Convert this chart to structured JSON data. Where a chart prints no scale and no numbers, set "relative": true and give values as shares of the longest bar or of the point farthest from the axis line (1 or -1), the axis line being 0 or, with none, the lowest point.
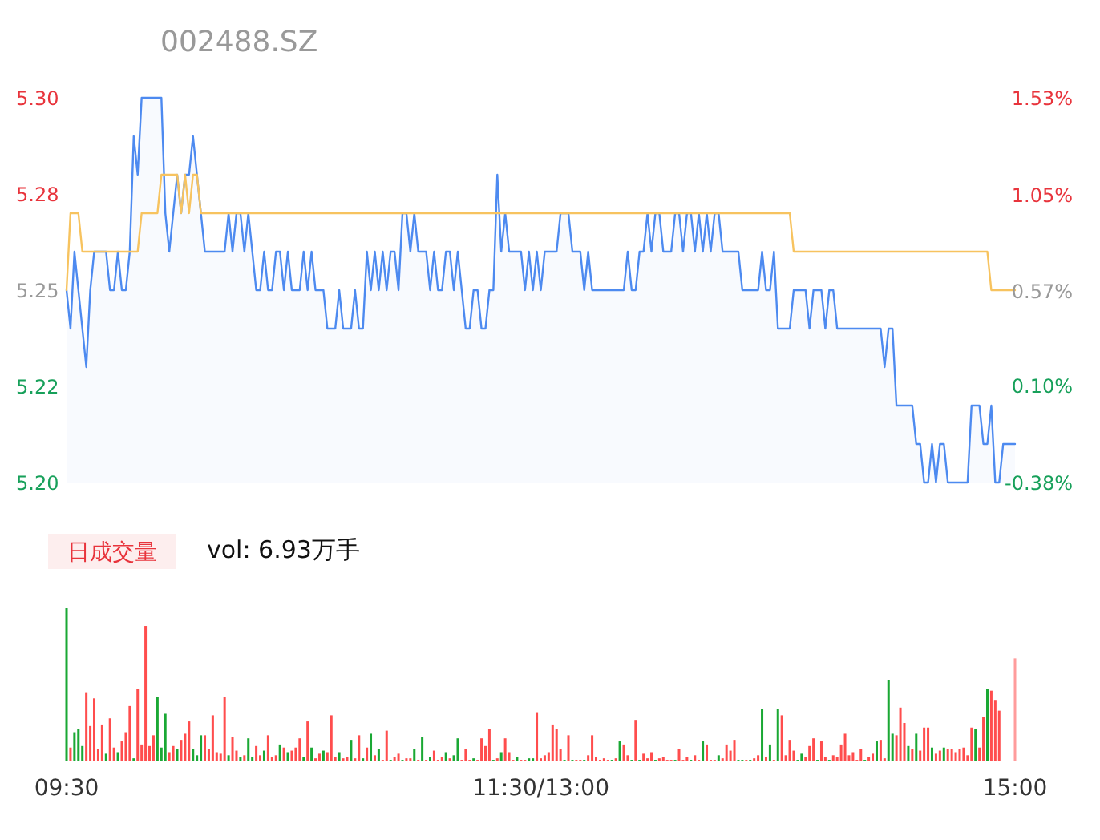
{
  "chart_data": [
    {
      "type": "area",
      "title": "002488.SZ",
      "tick_labels": "y",
      "categories": [
        null,
        null,
        null,
        null,
        null,
        null,
        null,
        null,
        null,
        null,
        null,
        null,
        null,
        null,
        null,
        null,
        null,
        null,
        null,
        null,
        null,
        null,
        null,
        null,
        null,
        null,
        null,
        null,
        null,
        null,
        null,
        null,
        null,
        null,
        null,
        null,
        null,
        null,
        null,
        null,
        null,
        null,
        null,
        null,
        null,
        null,
        null,
        null,
        null,
        null,
        null,
        null,
        null,
        null,
        null,
        null,
        null,
        null,
        null,
        null,
        null,
        null,
        null,
        null,
        null,
        null,
        null,
        null,
        null,
        null,
        null,
        null,
        null,
        null,
        null,
        null,
        null,
        null,
        null,
        null,
        null,
        null,
        null,
        null,
        null,
        null,
        null,
        null,
        null,
        null,
        null,
        null,
        null,
        null,
        null,
        null,
        null,
        null,
        null,
        null,
        null,
        null,
        null,
        null,
        null,
        null,
        null,
        null,
        null,
        null,
        null,
        null,
        null,
        null,
        null,
        null,
        null,
        null,
        null,
        null,
        null,
        null,
        null,
        null,
        null,
        null,
        null,
        null,
        null,
        null,
        null,
        null,
        null,
        null,
        null,
        null,
        null,
        null,
        null,
        null,
        null,
        null,
        null,
        null,
        null,
        null,
        null,
        null,
        null,
        null,
        null,
        null,
        null,
        null,
        null,
        null,
        null,
        null,
        null,
        null,
        null,
        null,
        null,
        null,
        null,
        null,
        null,
        null,
        null,
        null,
        null,
        null,
        null,
        null,
        null,
        null,
        null,
        null,
        null,
        null,
        null,
        null,
        null,
        null,
        null,
        null,
        null,
        null,
        null,
        null,
        null,
        null,
        null,
        null,
        null,
        null,
        null,
        null,
        null,
        null,
        null,
        null,
        null,
        null,
        null,
        null,
        null,
        null,
        null,
        null,
        null,
        null,
        null,
        null,
        null,
        null,
        null,
        null,
        null,
        null,
        null,
        null,
        null,
        null,
        null,
        null,
        null,
        null,
        null,
        null,
        null,
        null,
        null,
        null,
        null,
        null,
        null,
        null,
        null,
        null,
        null
      ],
      "series": [
        {
          "type": "area",
          "color": "#4d8af0",
          "values": [
            5.25,
            5.24,
            5.26,
            5.25,
            5.24,
            5.23,
            5.25,
            5.26,
            5.26,
            5.26,
            5.26,
            5.25,
            5.25,
            5.26,
            5.25,
            5.25,
            5.26,
            5.29,
            5.28,
            5.3,
            5.3,
            5.3,
            5.3,
            5.3,
            5.3,
            5.27,
            5.26,
            5.27,
            5.28,
            5.27,
            5.28,
            5.28,
            5.29,
            5.28,
            5.27,
            5.26,
            5.26,
            5.26,
            5.26,
            5.26,
            5.26,
            5.27,
            5.26,
            5.27,
            5.27,
            5.26,
            5.27,
            5.26,
            5.25,
            5.25,
            5.26,
            5.25,
            5.25,
            5.26,
            5.26,
            5.25,
            5.26,
            5.25,
            5.25,
            5.25,
            5.26,
            5.25,
            5.26,
            5.25,
            5.25,
            5.25,
            5.24,
            5.24,
            5.24,
            5.25,
            5.24,
            5.24,
            5.24,
            5.25,
            5.24,
            5.24,
            5.26,
            5.25,
            5.26,
            5.25,
            5.26,
            5.25,
            5.26,
            5.26,
            5.25,
            5.27,
            5.27,
            5.26,
            5.27,
            5.26,
            5.26,
            5.26,
            5.25,
            5.26,
            5.25,
            5.25,
            5.26,
            5.26,
            5.25,
            5.26,
            5.25,
            5.24,
            5.24,
            5.25,
            5.25,
            5.24,
            5.24,
            5.25,
            5.25,
            5.28,
            5.26,
            5.27,
            5.26,
            5.26,
            5.26,
            5.26,
            5.25,
            5.26,
            5.25,
            5.26,
            5.25,
            5.26,
            5.26,
            5.26,
            5.26,
            5.27,
            5.27,
            5.27,
            5.26,
            5.26,
            5.26,
            5.25,
            5.26,
            5.25,
            5.25,
            5.25,
            5.25,
            5.25,
            5.25,
            5.25,
            5.25,
            5.25,
            5.26,
            5.25,
            5.25,
            5.26,
            5.26,
            5.27,
            5.26,
            5.27,
            5.27,
            5.26,
            5.26,
            5.26,
            5.27,
            5.27,
            5.26,
            5.27,
            5.27,
            5.26,
            5.27,
            5.26,
            5.27,
            5.26,
            5.27,
            5.27,
            5.26,
            5.26,
            5.26,
            5.26,
            5.26,
            5.25,
            5.25,
            5.25,
            5.25,
            5.25,
            5.26,
            5.25,
            5.25,
            5.26,
            5.24,
            5.24,
            5.24,
            5.24,
            5.25,
            5.25,
            5.25,
            5.25,
            5.24,
            5.25,
            5.25,
            5.25,
            5.24,
            5.25,
            5.25,
            5.24,
            5.24,
            5.24,
            5.24,
            5.24,
            5.24,
            5.24,
            5.24,
            5.24,
            5.24,
            5.24,
            5.24,
            5.23,
            5.24,
            5.24,
            5.22,
            5.22,
            5.22,
            5.22,
            5.22,
            5.21,
            5.21,
            5.2,
            5.2,
            5.21,
            5.2,
            5.21,
            5.21,
            5.2,
            5.2,
            5.2,
            5.2,
            5.2,
            5.2,
            5.22,
            5.22,
            5.22,
            5.21,
            5.21,
            5.22,
            5.2,
            5.2,
            5.21,
            5.21,
            5.21,
            5.21
          ]
        },
        {
          "type": "line",
          "color": "#f7c35f",
          "values": [
            5.25,
            5.27,
            5.27,
            5.27,
            5.26,
            5.26,
            5.26,
            5.26,
            5.26,
            5.26,
            5.26,
            5.26,
            5.26,
            5.26,
            5.26,
            5.26,
            5.26,
            5.26,
            5.26,
            5.27,
            5.27,
            5.27,
            5.27,
            5.27,
            5.28,
            5.28,
            5.28,
            5.28,
            5.28,
            5.27,
            5.28,
            5.27,
            5.28,
            5.28,
            5.27,
            5.27,
            5.27,
            5.27,
            5.27,
            5.27,
            5.27,
            5.27,
            5.27,
            5.27,
            5.27,
            5.27,
            5.27,
            5.27,
            5.27,
            5.27,
            5.27,
            5.27,
            5.27,
            5.27,
            5.27,
            5.27,
            5.27,
            5.27,
            5.27,
            5.27,
            5.27,
            5.27,
            5.27,
            5.27,
            5.27,
            5.27,
            5.27,
            5.27,
            5.27,
            5.27,
            5.27,
            5.27,
            5.27,
            5.27,
            5.27,
            5.27,
            5.27,
            5.27,
            5.27,
            5.27,
            5.27,
            5.27,
            5.27,
            5.27,
            5.27,
            5.27,
            5.27,
            5.27,
            5.27,
            5.27,
            5.27,
            5.27,
            5.27,
            5.27,
            5.27,
            5.27,
            5.27,
            5.27,
            5.27,
            5.27,
            5.27,
            5.27,
            5.27,
            5.27,
            5.27,
            5.27,
            5.27,
            5.27,
            5.27,
            5.27,
            5.27,
            5.27,
            5.27,
            5.27,
            5.27,
            5.27,
            5.27,
            5.27,
            5.27,
            5.27,
            5.27,
            5.27,
            5.27,
            5.27,
            5.27,
            5.27,
            5.27,
            5.27,
            5.27,
            5.27,
            5.27,
            5.27,
            5.27,
            5.27,
            5.27,
            5.27,
            5.27,
            5.27,
            5.27,
            5.27,
            5.27,
            5.27,
            5.27,
            5.27,
            5.27,
            5.27,
            5.27,
            5.27,
            5.27,
            5.27,
            5.27,
            5.27,
            5.27,
            5.27,
            5.27,
            5.27,
            5.27,
            5.27,
            5.27,
            5.27,
            5.27,
            5.27,
            5.27,
            5.27,
            5.27,
            5.27,
            5.27,
            5.27,
            5.27,
            5.27,
            5.27,
            5.27,
            5.27,
            5.27,
            5.27,
            5.27,
            5.27,
            5.27,
            5.27,
            5.27,
            5.27,
            5.27,
            5.27,
            5.27,
            5.26,
            5.26,
            5.26,
            5.26,
            5.26,
            5.26,
            5.26,
            5.26,
            5.26,
            5.26,
            5.26,
            5.26,
            5.26,
            5.26,
            5.26,
            5.26,
            5.26,
            5.26,
            5.26,
            5.26,
            5.26,
            5.26,
            5.26,
            5.26,
            5.26,
            5.26,
            5.26,
            5.26,
            5.26,
            5.26,
            5.26,
            5.26,
            5.26,
            5.26,
            5.26,
            5.26,
            5.26,
            5.26,
            5.26,
            5.26,
            5.26,
            5.26,
            5.26,
            5.26,
            5.26,
            5.26,
            5.26,
            5.26,
            5.26,
            5.26,
            5.25,
            5.25,
            5.25,
            5.25,
            5.25,
            5.25,
            5.25
          ]
        }
      ],
      "ylim": [
        5.2,
        5.3
      ],
      "yticks": [
        {
          "value": 5.3,
          "label": "5.30"
        },
        {
          "value": 5.275,
          "label": "5.28"
        },
        5.25,
        {
          "value": 5.225,
          "label": "5.22"
        },
        {
          "value": 5.2,
          "label": "5.20"
        }
      ],
      "y2lim": [
        -0.38,
        1.53
      ],
      "y2ticks": [
        {
          "value": 1.53,
          "label": "1.53%"
        },
        {
          "value": 1.05,
          "label": "1.05%"
        },
        {
          "value": 0.57,
          "label": "0.57%"
        },
        {
          "value": 0.1,
          "label": "0.10%"
        },
        {
          "value": -0.38,
          "label": "-0.38%"
        }
      ]
    },
    {
      "type": "bar",
      "relative": true,
      "title": "日成交量",
      "annotations": [
        "vol: 6.93万手"
      ],
      "categories": [
        "09:30",
        null,
        null,
        null,
        null,
        null,
        null,
        null,
        null,
        null,
        null,
        null,
        null,
        null,
        null,
        null,
        null,
        null,
        null,
        null,
        null,
        null,
        null,
        null,
        null,
        null,
        null,
        null,
        null,
        null,
        null,
        null,
        null,
        null,
        null,
        null,
        null,
        null,
        null,
        null,
        null,
        null,
        null,
        null,
        null,
        null,
        null,
        null,
        null,
        null,
        null,
        null,
        null,
        null,
        null,
        null,
        null,
        null,
        null,
        null,
        null,
        null,
        null,
        null,
        null,
        null,
        null,
        null,
        null,
        null,
        null,
        null,
        null,
        null,
        null,
        null,
        null,
        null,
        null,
        null,
        null,
        null,
        null,
        null,
        null,
        null,
        null,
        null,
        null,
        null,
        null,
        null,
        null,
        null,
        null,
        null,
        null,
        null,
        null,
        null,
        null,
        null,
        null,
        null,
        null,
        null,
        null,
        null,
        null,
        null,
        null,
        null,
        null,
        null,
        null,
        null,
        null,
        null,
        null,
        null,
        "11:30/13:00",
        null,
        null,
        null,
        null,
        null,
        null,
        null,
        null,
        null,
        null,
        null,
        null,
        null,
        null,
        null,
        null,
        null,
        null,
        null,
        null,
        null,
        null,
        null,
        null,
        null,
        null,
        null,
        null,
        null,
        null,
        null,
        null,
        null,
        null,
        null,
        null,
        null,
        null,
        null,
        null,
        null,
        null,
        null,
        null,
        null,
        null,
        null,
        null,
        null,
        null,
        null,
        null,
        null,
        null,
        null,
        null,
        null,
        null,
        null,
        null,
        null,
        null,
        null,
        null,
        null,
        null,
        null,
        null,
        null,
        null,
        null,
        null,
        null,
        null,
        null,
        null,
        null,
        null,
        null,
        null,
        null,
        null,
        null,
        null,
        null,
        null,
        null,
        null,
        null,
        null,
        null,
        null,
        null,
        null,
        null,
        null,
        null,
        null,
        null,
        null,
        null,
        null,
        null,
        null,
        null,
        null,
        null,
        null,
        null,
        null,
        null,
        null,
        null,
        null,
        null,
        null,
        null,
        null,
        null,
        "15:00"
      ],
      "values": [
        1.0,
        0.09,
        0.19,
        0.21,
        0.1,
        0.45,
        0.23,
        0.41,
        0.08,
        0.24,
        0.05,
        0.28,
        0.09,
        0.06,
        0.13,
        0.19,
        0.36,
        0.02,
        0.47,
        0.11,
        0.88,
        0.1,
        0.17,
        0.42,
        0.09,
        0.31,
        0.06,
        0.1,
        0.08,
        0.14,
        0.18,
        0.26,
        0.08,
        0.04,
        0.17,
        0.17,
        0.08,
        0.3,
        0.06,
        0.05,
        0.42,
        0.04,
        0.16,
        0.07,
        0.03,
        0.04,
        0.15,
        0.03,
        0.1,
        0.04,
        0.07,
        0.17,
        0.03,
        0.04,
        0.11,
        0.09,
        0.06,
        0.07,
        0.09,
        0.15,
        0.03,
        0.26,
        0.09,
        0.02,
        0.05,
        0.07,
        0.06,
        0.3,
        0.03,
        0.06,
        0.02,
        0.03,
        0.14,
        0.02,
        0.17,
        0.02,
        0.09,
        0.18,
        0.04,
        0.08,
        0.01,
        0.2,
        0.01,
        0.03,
        0.05,
        0.01,
        0.02,
        0.02,
        0.08,
        0.01,
        0.16,
        0.01,
        0.03,
        0.07,
        0.01,
        0.03,
        0.06,
        0.02,
        0.04,
        0.15,
        0.01,
        0.08,
        0.01,
        0.02,
        0.01,
        0.15,
        0.1,
        0.21,
        0.01,
        0.02,
        0.06,
        0.15,
        0.06,
        0.01,
        0.03,
        0.01,
        0.01,
        0.02,
        0.02,
        0.32,
        0.02,
        0.04,
        0.06,
        0.24,
        0.21,
        0.08,
        0.01,
        0.17,
        0.01,
        0.01,
        0.01,
        0.01,
        0.04,
        0.17,
        0.03,
        0.01,
        0.02,
        0.01,
        0.01,
        0.02,
        0.13,
        0.11,
        0.04,
        0.01,
        0.27,
        0.01,
        0.05,
        0.02,
        0.06,
        0.01,
        0.02,
        0.03,
        0.01,
        0.01,
        0.01,
        0.08,
        0.01,
        0.03,
        0.01,
        0.04,
        0.01,
        0.13,
        0.11,
        0.01,
        0.01,
        0.04,
        0.02,
        0.11,
        0.07,
        0.14,
        0.01,
        0.01,
        0.01,
        0.01,
        0.02,
        0.04,
        0.34,
        0.03,
        0.11,
        0.01,
        0.34,
        0.3,
        0.04,
        0.14,
        0.07,
        0.01,
        0.05,
        0.03,
        0.1,
        0.15,
        0.01,
        0.13,
        0.03,
        0.01,
        0.04,
        0.03,
        0.11,
        0.18,
        0.04,
        0.06,
        0.01,
        0.08,
        0.01,
        0.03,
        0.05,
        0.13,
        0.14,
        0.02,
        0.53,
        0.18,
        0.17,
        0.35,
        0.25,
        0.1,
        0.08,
        0.18,
        0.07,
        0.22,
        0.22,
        0.09,
        0.05,
        0.07,
        0.09,
        0.08,
        0.08,
        0.06,
        0.08,
        0.09,
        0.04,
        0.22,
        0.21,
        0.09,
        0.29,
        0.47,
        0.46,
        0.4,
        0.33,
        0,
        0,
        0,
        0.67
      ],
      "colors": [
        "#1aa834",
        "#ff4d4d",
        "#1aa834",
        "#1aa834",
        "#1aa834",
        "#ff4d4d",
        "#ff4d4d",
        "#ff4d4d",
        "#ff4d4d",
        "#ff4d4d",
        "#1aa834",
        "#ff4d4d",
        "#ff4d4d",
        "#1aa834",
        "#ff4d4d",
        "#ff4d4d",
        "#ff4d4d",
        "#1aa834",
        "#ff4d4d",
        "#ff4d4d",
        "#ff4d4d",
        "#ff4d4d",
        "#ff4d4d",
        "#1aa834",
        "#1aa834",
        "#1aa834",
        "#ff4d4d",
        "#ff4d4d",
        "#1aa834",
        "#ff4d4d",
        "#ff4d4d",
        "#ff4d4d",
        "#1aa834",
        "#1aa834",
        "#1aa834",
        "#ff4d4d",
        "#ff4d4d",
        "#ff4d4d",
        "#ff4d4d",
        "#ff4d4d",
        "#ff4d4d",
        "#1aa834",
        "#ff4d4d",
        "#ff4d4d",
        "#1aa834",
        "#ff4d4d",
        "#1aa834",
        "#1aa834",
        "#ff4d4d",
        "#ff4d4d",
        "#1aa834",
        "#ff4d4d",
        "#ff4d4d",
        "#ff4d4d",
        "#1aa834",
        "#ff4d4d",
        "#1aa834",
        "#ff4d4d",
        "#ff4d4d",
        "#ff4d4d",
        "#1aa834",
        "#ff4d4d",
        "#1aa834",
        "#ff4d4d",
        "#ff4d4d",
        "#1aa834",
        "#ff4d4d",
        "#ff4d4d",
        "#ff4d4d",
        "#1aa834",
        "#ff4d4d",
        "#ff4d4d",
        "#1aa834",
        "#ff4d4d",
        "#ff4d4d",
        "#1aa834",
        "#ff4d4d",
        "#1aa834",
        "#ff4d4d",
        "#1aa834",
        "#ff4d4d",
        "#ff4d4d",
        "#1aa834",
        "#ff4d4d",
        "#ff4d4d",
        "#1aa834",
        "#ff4d4d",
        "#ff4d4d",
        "#1aa834",
        "#ff4d4d",
        "#1aa834",
        "#ff4d4d",
        "#1aa834",
        "#ff4d4d",
        "#ff4d4d",
        "#ff4d4d",
        "#1aa834",
        "#ff4d4d",
        "#1aa834",
        "#1aa834",
        "#ff4d4d",
        "#ff4d4d",
        "#ff4d4d",
        "#1aa834",
        "#ff4d4d",
        "#ff4d4d",
        "#ff4d4d",
        "#ff4d4d",
        "#1aa834",
        "#ff4d4d",
        "#1aa834",
        "#ff4d4d",
        "#ff4d4d",
        "#ff4d4d",
        "#1aa834",
        "#ff4d4d",
        "#ff4d4d",
        "#1aa834",
        "#1aa834",
        "#ff4d4d",
        "#ff4d4d",
        "#ff4d4d",
        "#ff4d4d",
        "#ff4d4d",
        "#ff4d4d",
        "#ff4d4d",
        "#1aa834",
        "#ff4d4d",
        "#1aa834",
        "#ff4d4d",
        "#ff4d4d",
        "#1aa834",
        "#ff4d4d",
        "#ff4d4d",
        "#ff4d4d",
        "#ff4d4d",
        "#ff4d4d",
        "#ff4d4d",
        "#1aa834",
        "#ff4d4d",
        "#1aa834",
        "#ff4d4d",
        "#ff4d4d",
        "#1aa834",
        "#ff4d4d",
        "#1aa834",
        "#ff4d4d",
        "#ff4d4d",
        "#ff4d4d",
        "#1aa834",
        "#ff4d4d",
        "#ff4d4d",
        "#ff4d4d",
        "#ff4d4d",
        "#1aa834",
        "#ff4d4d",
        "#ff4d4d",
        "#ff4d4d",
        "#1aa834",
        "#ff4d4d",
        "#ff4d4d",
        "#1aa834",
        "#ff4d4d",
        "#ff4d4d",
        "#ff4d4d",
        "#1aa834",
        "#ff4d4d",
        "#ff4d4d",
        "#ff4d4d",
        "#ff4d4d",
        "#1aa834",
        "#1aa834",
        "#ff4d4d",
        "#1aa834",
        "#ff4d4d",
        "#ff4d4d",
        "#1aa834",
        "#ff4d4d",
        "#1aa834",
        "#ff4d4d",
        "#1aa834",
        "#ff4d4d",
        "#ff4d4d",
        "#ff4d4d",
        "#ff4d4d",
        "#1aa834",
        "#1aa834",
        "#ff4d4d",
        "#ff4d4d",
        "#ff4d4d",
        "#1aa834",
        "#ff4d4d",
        "#ff4d4d",
        "#1aa834",
        "#ff4d4d",
        "#ff4d4d",
        "#ff4d4d",
        "#ff4d4d",
        "#ff4d4d",
        "#ff4d4d",
        "#ff4d4d",
        "#ff4d4d",
        "#1aa834",
        "#ff4d4d",
        "#ff4d4d",
        "#1aa834",
        "#ff4d4d",
        "#ff4d4d",
        "#1aa834",
        "#1aa834",
        "#ff4d4d",
        "#ff4d4d",
        "#ff4d4d",
        "#1aa834",
        "#ff4d4d",
        "#1aa834",
        "#ff4d4d",
        "#ff4d4d",
        "#ff4d4d",
        "#1aa834",
        "#ff4d4d",
        "#ff4d4d",
        "#1aa834",
        "#ff4d4d",
        "#ff4d4d",
        "#ff4d4d",
        "#ff4d4d",
        "#ff4d4d",
        "#ff4d4d",
        "#ff4d4d",
        "#1aa834",
        "#ff4d4d",
        "#ff4d4d",
        "#1aa834",
        "#ff4d4d",
        "#ff4d4d",
        "#ff4d4d",
        "#ff4d4d",
        "#ff4d4d",
        "#ff4d4d",
        "#ff9c9c"
      ]
    }
  ]
}
